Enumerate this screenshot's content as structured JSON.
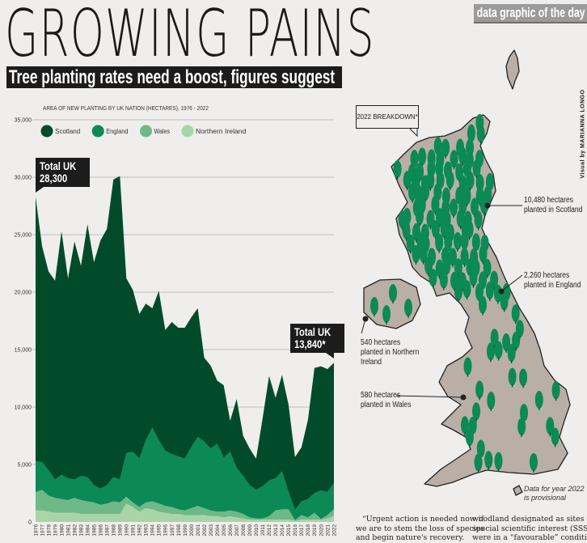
{
  "header": {
    "title": "GROWING PAINS",
    "subtitle": "Tree planting rates need a boost, figures suggest",
    "tag": "data graphic of the day",
    "credit": "Visual by MARIANNA LONGO"
  },
  "chart_data": {
    "type": "area",
    "stacked": true,
    "title": "AREA OF NEW PLANTING BY UK NATION (HECTARES), 1976 - 2022",
    "xlabel": "",
    "ylabel": "",
    "ylim": [
      0,
      35000
    ],
    "yticks": [
      "0",
      "5,000",
      "10,000",
      "15,000",
      "20,000",
      "25,000",
      "30,000",
      "35,000"
    ],
    "ytick_values": [
      0,
      5000,
      10000,
      15000,
      20000,
      25000,
      30000,
      35000
    ],
    "grid": true,
    "legend_placement": "top-left",
    "x": [
      1976,
      1977,
      1978,
      1979,
      1980,
      1981,
      1982,
      1983,
      1984,
      1985,
      1986,
      1987,
      1988,
      1989,
      1990,
      1991,
      1992,
      1993,
      1994,
      1995,
      1996,
      1997,
      1998,
      1999,
      2000,
      2001,
      2002,
      2003,
      2004,
      2005,
      2006,
      2007,
      2008,
      2009,
      2010,
      2011,
      2012,
      2013,
      2014,
      2015,
      2016,
      2017,
      2018,
      2019,
      2020,
      2021,
      2022
    ],
    "series": [
      {
        "name": "Northern Ireland",
        "color": "#a9d5a6",
        "values": [
          1000,
          1000,
          900,
          800,
          800,
          800,
          800,
          700,
          700,
          700,
          700,
          700,
          700,
          700,
          1600,
          1300,
          900,
          1200,
          1100,
          900,
          800,
          700,
          700,
          600,
          600,
          600,
          600,
          500,
          500,
          400,
          500,
          400,
          300,
          200,
          200,
          200,
          200,
          200,
          200,
          200,
          100,
          200,
          200,
          200,
          200,
          300,
          540
        ]
      },
      {
        "name": "Wales",
        "color": "#6fb888",
        "values": [
          1600,
          1800,
          1400,
          1300,
          1200,
          1100,
          1300,
          1200,
          1100,
          1000,
          800,
          900,
          1100,
          1000,
          600,
          400,
          400,
          500,
          700,
          700,
          600,
          600,
          400,
          400,
          600,
          800,
          600,
          500,
          400,
          500,
          500,
          500,
          400,
          200,
          100,
          100,
          300,
          800,
          900,
          900,
          50,
          400,
          200,
          600,
          50,
          300,
          580
        ]
      },
      {
        "name": "England",
        "color": "#0b8a55",
        "values": [
          2700,
          2400,
          2200,
          1600,
          2100,
          1900,
          1600,
          2100,
          2100,
          1500,
          1400,
          1600,
          2100,
          2000,
          3800,
          4400,
          4200,
          5400,
          6400,
          5500,
          4800,
          4600,
          4600,
          4500,
          5300,
          6000,
          5800,
          5400,
          5900,
          4700,
          5100,
          3800,
          3300,
          2800,
          2500,
          2800,
          3100,
          2800,
          3300,
          1500,
          900,
          1200,
          1600,
          1700,
          2500,
          2000,
          2260
        ]
      },
      {
        "name": "Scotland",
        "color": "#024b2a",
        "values": [
          23000,
          18800,
          17300,
          17300,
          21200,
          17400,
          20700,
          18300,
          22000,
          19400,
          21600,
          22300,
          25900,
          26400,
          15200,
          14100,
          12600,
          11900,
          10400,
          13000,
          10500,
          11500,
          11200,
          11400,
          11300,
          11200,
          7300,
          7200,
          5500,
          6300,
          2700,
          6000,
          3500,
          3200,
          2700,
          5900,
          9100,
          7000,
          8400,
          7600,
          4600,
          4700,
          6900,
          10900,
          10800,
          10700,
          10480
        ]
      }
    ],
    "legend": [
      "Scotland",
      "England",
      "Wales",
      "Northern Ireland"
    ],
    "annotations": [
      {
        "line1": "Total UK",
        "line2": "28,300",
        "year": 1976
      },
      {
        "line1": "Total UK",
        "line2": "13,840*",
        "year": 2022
      }
    ]
  },
  "map": {
    "breakdown_label": "2022 BREAKDOWN*",
    "land_color": "#b9afa6",
    "tree_color": "#0b8a55",
    "labels": {
      "scotland": [
        "10,480 hectares",
        "planted in Scotland"
      ],
      "england": [
        "2,260 hectares",
        "planted in England"
      ],
      "northern_ireland": [
        "540 hectares",
        "planted in Northern",
        "Ireland"
      ],
      "wales": [
        "580 hectares",
        "planted in Wales"
      ]
    },
    "footnote": [
      "Data for year 2022",
      "is provisional"
    ]
  },
  "article": {
    "col1": [
      "“Urgent action is needed now if",
      "we are to stem the loss of species",
      "and begin nature's recovery."
    ],
    "col2": [
      "woodland designated as sites of",
      "special scientific interest (SSSIs)",
      "were in a “favourable” condition."
    ]
  }
}
